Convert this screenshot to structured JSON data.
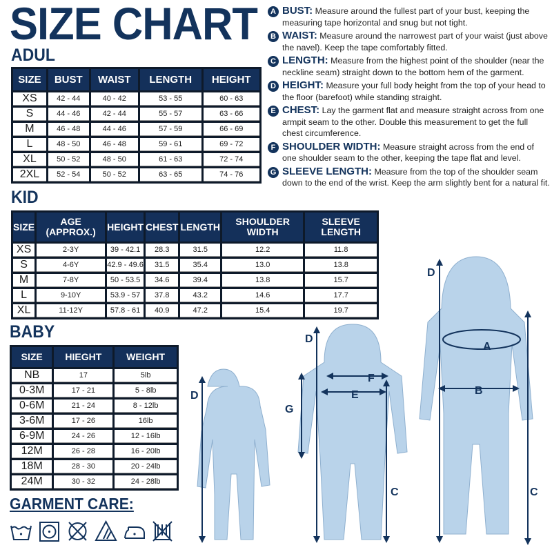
{
  "title": "SIZE CHART",
  "adult": {
    "label": "ADUL",
    "headers": [
      "SIZE",
      "BUST",
      "WAIST",
      "LENGTH",
      "HEIGHT"
    ],
    "rows": [
      [
        "XS",
        "42 - 44",
        "40 - 42",
        "53 - 55",
        "60 - 63"
      ],
      [
        "S",
        "44 - 46",
        "42 - 44",
        "55 - 57",
        "63 - 66"
      ],
      [
        "M",
        "46 - 48",
        "44 - 46",
        "57 - 59",
        "66 - 69"
      ],
      [
        "L",
        "48 - 50",
        "46 - 48",
        "59 - 61",
        "69 - 72"
      ],
      [
        "XL",
        "50 - 52",
        "48 - 50",
        "61 - 63",
        "72 - 74"
      ],
      [
        "2XL",
        "52 - 54",
        "50 - 52",
        "63 - 65",
        "74 - 76"
      ]
    ]
  },
  "kid": {
    "label": "KID",
    "headers": [
      "SIZE",
      "AGE (APPROX.)",
      "HEIGHT",
      "CHEST",
      "LENGTH",
      "SHOULDER WIDTH",
      "SLEEVE LENGTH"
    ],
    "rows": [
      [
        "XS",
        "2-3Y",
        "39 - 42.1",
        "28.3",
        "31.5",
        "12.2",
        "11.8"
      ],
      [
        "S",
        "4-6Y",
        "42.9 - 49.6",
        "31.5",
        "35.4",
        "13.0",
        "13.8"
      ],
      [
        "M",
        "7-8Y",
        "50 - 53.5",
        "34.6",
        "39.4",
        "13.8",
        "15.7"
      ],
      [
        "L",
        "9-10Y",
        "53.9 - 57",
        "37.8",
        "43.2",
        "14.6",
        "17.7"
      ],
      [
        "XL",
        "11-12Y",
        "57.8 - 61",
        "40.9",
        "47.2",
        "15.4",
        "19.7"
      ]
    ]
  },
  "baby": {
    "label": "BABY",
    "headers": [
      "SIZE",
      "HIEGHT",
      "WEIGHT"
    ],
    "rows": [
      [
        "NB",
        "17",
        "5lb"
      ],
      [
        "0-3M",
        "17 - 21",
        "5 - 8lb"
      ],
      [
        "0-6M",
        "21 - 24",
        "8 - 12lb"
      ],
      [
        "3-6M",
        "17 - 26",
        "16lb"
      ],
      [
        "6-9M",
        "24 - 26",
        "12 - 16lb"
      ],
      [
        "12M",
        "26 - 28",
        "16 - 20lb"
      ],
      [
        "18M",
        "28 - 30",
        "20 - 24lb"
      ],
      [
        "24M",
        "30 - 32",
        "24 - 28lb"
      ]
    ]
  },
  "definitions": [
    {
      "letter": "A",
      "term": "BUST:",
      "text": "Measure around the fullest part of your bust, keeping the measuring tape horizontal and snug but not tight."
    },
    {
      "letter": "B",
      "term": "WAIST:",
      "text": "Measure around the narrowest part of your waist (just above the navel). Keep the tape comfortably fitted."
    },
    {
      "letter": "C",
      "term": "LENGTH:",
      "text": "Measure from the highest point of the shoulder (near the neckline seam) straight down to the bottom hem of the garment."
    },
    {
      "letter": "D",
      "term": "HEIGHT:",
      "text": "Measure your full body height from the top of your head to the floor (barefoot) while standing straight."
    },
    {
      "letter": "E",
      "term": "CHEST:",
      "text": "Lay the garment flat and measure straight across from one armpit seam to the other. Double this measurement to get the full chest circumference."
    },
    {
      "letter": "F",
      "term": "SHOULDER WIDTH:",
      "text": "Measure straight across from the end of one shoulder seam to the other, keeping the tape flat and level."
    },
    {
      "letter": "G",
      "term": "SLEEVE LENGTH:",
      "text": "Measure from the top of the shoulder seam down to the end of the wrist. Keep the arm slightly bent for a natural fit."
    }
  ],
  "care": {
    "label": "GARMENT CARE:",
    "icons": [
      "wash-30-icon",
      "tumble-dry-icon",
      "do-not-dryclean-icon",
      "bleach-icon",
      "iron-low-icon",
      "do-not-wring-icon"
    ]
  },
  "colors": {
    "navy": "#13335c",
    "garment": "#b9d3ea"
  },
  "illustration_labels": {
    "baby": [
      "D"
    ],
    "kid": [
      "D",
      "F",
      "E",
      "G",
      "C"
    ],
    "adult": [
      "D",
      "A",
      "B",
      "C"
    ]
  }
}
